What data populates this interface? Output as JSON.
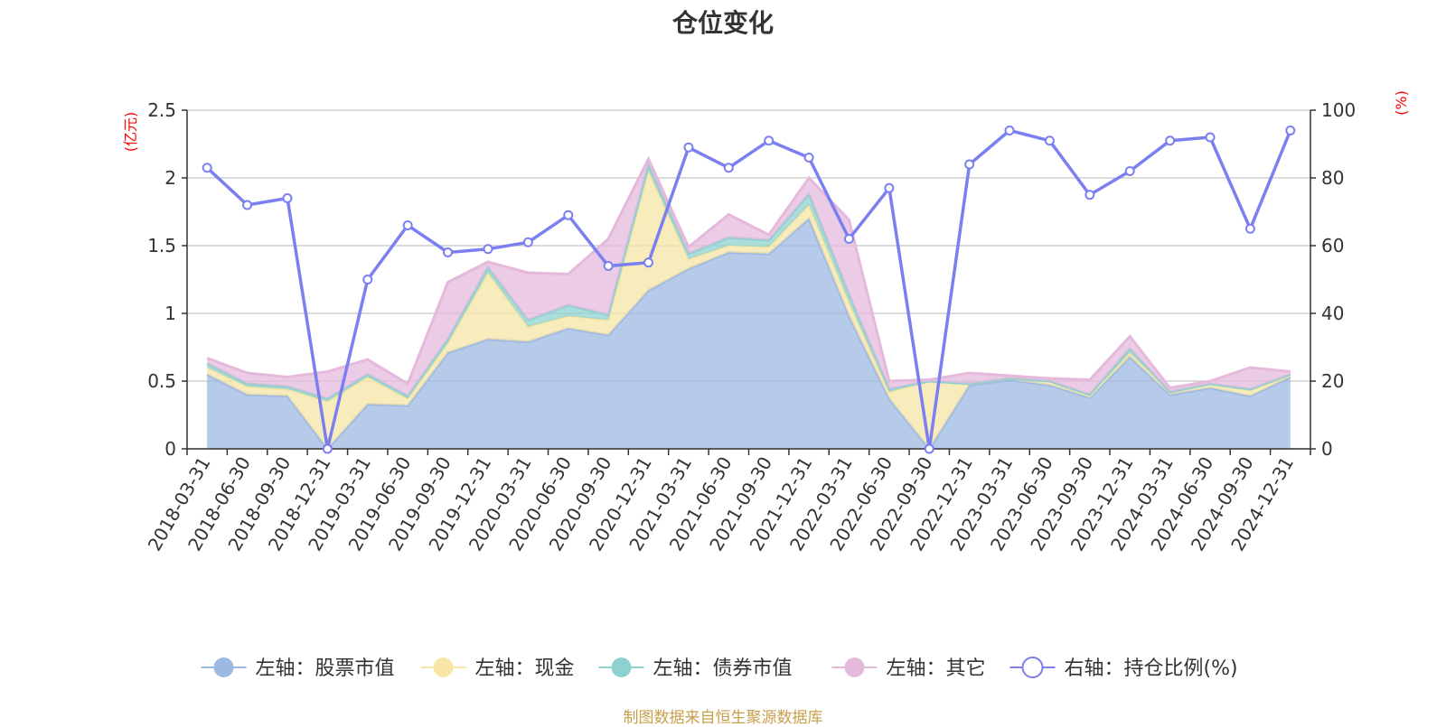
{
  "title": "仓位变化",
  "source_note": "制图数据来自恒生聚源数据库",
  "colors": {
    "stock": "#9db8e2",
    "cash": "#f7e6a6",
    "bond": "#8fd1d1",
    "other": "#e4b9dc",
    "ratio": "#7b7ff0",
    "axis_unit": "#ff0000",
    "source": "#c8a04a"
  },
  "chart_data": {
    "type": "area",
    "title": "仓位变化",
    "stacked": true,
    "x": [
      "2018-03-31",
      "2018-06-30",
      "2018-09-30",
      "2018-12-31",
      "2019-03-31",
      "2019-06-30",
      "2019-09-30",
      "2019-12-31",
      "2020-03-31",
      "2020-06-30",
      "2020-09-30",
      "2020-12-31",
      "2021-03-31",
      "2021-06-30",
      "2021-09-30",
      "2021-12-31",
      "2022-03-31",
      "2022-06-30",
      "2022-09-30",
      "2022-12-31",
      "2023-03-31",
      "2023-06-30",
      "2023-09-30",
      "2023-12-31",
      "2024-03-31",
      "2024-06-30",
      "2024-09-30",
      "2024-12-31"
    ],
    "left_axis": {
      "unit_label": "(亿元)",
      "ylim": [
        0,
        2.5
      ],
      "ticks": [
        "0",
        "0.5",
        "1",
        "1.5",
        "2",
        "2.5"
      ]
    },
    "right_axis": {
      "unit_label": "(%)",
      "ylim": [
        0,
        100
      ],
      "ticks": [
        "0",
        "20",
        "40",
        "60",
        "80",
        "100"
      ]
    },
    "series": [
      {
        "name": "左轴：股票市值",
        "axis": "left",
        "type": "area",
        "values": [
          0.55,
          0.4,
          0.39,
          0.0,
          0.33,
          0.32,
          0.71,
          0.81,
          0.79,
          0.89,
          0.84,
          1.17,
          1.33,
          1.45,
          1.44,
          1.7,
          0.98,
          0.37,
          0.0,
          0.47,
          0.51,
          0.47,
          0.38,
          0.68,
          0.4,
          0.45,
          0.39,
          0.53
        ]
      },
      {
        "name": "左轴：现金",
        "axis": "left",
        "type": "area",
        "values": [
          0.05,
          0.06,
          0.05,
          0.35,
          0.2,
          0.05,
          0.07,
          0.49,
          0.11,
          0.09,
          0.11,
          0.88,
          0.07,
          0.05,
          0.05,
          0.1,
          0.1,
          0.05,
          0.5,
          0.01,
          0.01,
          0.03,
          0.01,
          0.03,
          0.02,
          0.03,
          0.04,
          0.02
        ]
      },
      {
        "name": "左轴：债券市值",
        "axis": "left",
        "type": "area",
        "values": [
          0.03,
          0.02,
          0.02,
          0.02,
          0.02,
          0.02,
          0.03,
          0.04,
          0.05,
          0.08,
          0.04,
          0.05,
          0.04,
          0.06,
          0.05,
          0.08,
          0.06,
          0.02,
          0.0,
          0.0,
          0.0,
          0.0,
          0.01,
          0.03,
          0.0,
          0.0,
          0.01,
          0.0
        ]
      },
      {
        "name": "左轴：其它",
        "axis": "left",
        "type": "area",
        "values": [
          0.04,
          0.08,
          0.07,
          0.2,
          0.11,
          0.09,
          0.42,
          0.04,
          0.35,
          0.23,
          0.56,
          0.04,
          0.05,
          0.17,
          0.04,
          0.12,
          0.55,
          0.06,
          0.01,
          0.08,
          0.02,
          0.02,
          0.11,
          0.09,
          0.03,
          0.02,
          0.16,
          0.02
        ]
      },
      {
        "name": "右轴：持仓比例(%)",
        "axis": "right",
        "type": "line",
        "values": [
          83,
          72,
          74,
          0,
          50,
          66,
          58,
          59,
          61,
          69,
          54,
          55,
          89,
          83,
          91,
          86,
          62,
          77,
          0,
          84,
          94,
          91,
          75,
          82,
          91,
          92,
          65,
          94
        ]
      }
    ],
    "legend_position": "bottom",
    "grid": true
  }
}
